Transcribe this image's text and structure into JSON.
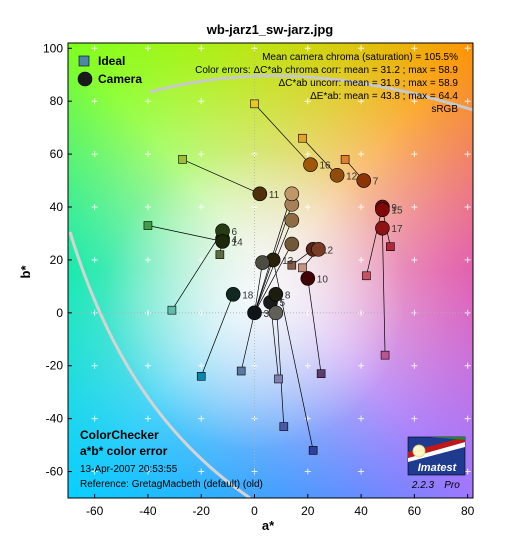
{
  "chart_data": {
    "type": "scatter",
    "title": "wb-jarz1_sw-jarz.jpg",
    "xlabel": "a*",
    "ylabel": "b*",
    "xlim": [
      -70,
      82
    ],
    "ylim": [
      -70,
      102
    ],
    "xticks": [
      -60,
      -40,
      -20,
      0,
      20,
      40,
      60,
      80
    ],
    "yticks": [
      -60,
      -40,
      -20,
      0,
      20,
      40,
      60,
      80,
      100
    ],
    "grid": true,
    "legend": {
      "placement": "top-left",
      "entries": [
        "Ideal",
        "Camera"
      ]
    },
    "stats": [
      "Mean camera chroma (saturation) = 105.5%",
      "Color errors:  ΔC*ab chroma corr:  mean = 31.2 ;  max = 58.9",
      "ΔC*ab uncorr:  mean = 31.9 ;  max = 58.9",
      "ΔE*ab:  mean = 43.8 ;  max = 64.4",
      "sRGB"
    ],
    "info": {
      "chart_name": "ColorChecker",
      "subtitle": "a*b* color error",
      "date": "13-Apr-2007 20:53:55",
      "reference": "Reference: GretagMacbeth (default) (old)"
    },
    "logo": {
      "name": "Imatest",
      "version": "2.2.3",
      "edition": "Pro"
    },
    "patches": [
      {
        "id": 1,
        "label": "1",
        "ideal": [
          14,
          18
        ],
        "camera": [
          22,
          24
        ],
        "ideal_color": "#8a5a48",
        "camera_color": "#5a2616"
      },
      {
        "id": 2,
        "label": "2",
        "ideal": [
          18,
          17
        ],
        "camera": [
          24,
          24
        ],
        "ideal_color": "#c89482",
        "camera_color": "#7a3c24"
      },
      {
        "id": 3,
        "label": "3",
        "ideal": [
          -5,
          -22
        ],
        "camera": [
          0,
          0
        ],
        "ideal_color": "#5a78a0",
        "camera_color": "#101418"
      },
      {
        "id": 4,
        "label": "4",
        "ideal": [
          -13,
          22
        ],
        "camera": [
          -12,
          28
        ],
        "ideal_color": "#5c6c3c",
        "camera_color": "#183008"
      },
      {
        "id": 5,
        "label": "5",
        "ideal": [
          9,
          -25
        ],
        "camera": [
          6,
          4
        ],
        "ideal_color": "#8080b0",
        "camera_color": "#181c1c"
      },
      {
        "id": 6,
        "label": "6",
        "ideal": [
          -31,
          1
        ],
        "camera": [
          -12,
          31
        ],
        "ideal_color": "#60bcaa",
        "camera_color": "#283c14"
      },
      {
        "id": 7,
        "label": "7",
        "ideal": [
          34,
          58
        ],
        "camera": [
          41,
          50
        ],
        "ideal_color": "#e07c2c",
        "camera_color": "#8c3408"
      },
      {
        "id": 8,
        "label": "8",
        "ideal": [
          11,
          -43
        ],
        "camera": [
          8,
          7
        ],
        "ideal_color": "#4a5aa8",
        "camera_color": "#1c1c10"
      },
      {
        "id": 9,
        "label": "9",
        "ideal": [
          42,
          14
        ],
        "camera": [
          48,
          40
        ],
        "ideal_color": "#c45460",
        "camera_color": "#6c0c0c"
      },
      {
        "id": 10,
        "label": "10",
        "ideal": [
          25,
          -23
        ],
        "camera": [
          20,
          13
        ],
        "ideal_color": "#5e3c6c",
        "camera_color": "#400404"
      },
      {
        "id": 11,
        "label": "11",
        "ideal": [
          -27,
          58
        ],
        "camera": [
          2,
          45
        ],
        "ideal_color": "#9cbc3c",
        "camera_color": "#503008"
      },
      {
        "id": 12,
        "label": "12",
        "ideal": [
          18,
          66
        ],
        "camera": [
          31,
          52
        ],
        "ideal_color": "#e4a428",
        "camera_color": "#904c08"
      },
      {
        "id": 13,
        "label": "13",
        "ideal": [
          22,
          -52
        ],
        "camera": [
          7,
          20
        ],
        "ideal_color": "#3040a0",
        "camera_color": "#282008"
      },
      {
        "id": 14,
        "label": "14",
        "ideal": [
          -40,
          33
        ],
        "camera": [
          -12,
          27
        ],
        "ideal_color": "#449c48",
        "camera_color": "#1c2808"
      },
      {
        "id": 15,
        "label": "15",
        "ideal": [
          51,
          25
        ],
        "camera": [
          48,
          39
        ],
        "ideal_color": "#b0283a",
        "camera_color": "#800808"
      },
      {
        "id": 16,
        "label": "16",
        "ideal": [
          0,
          79
        ],
        "camera": [
          21,
          56
        ],
        "ideal_color": "#ecc620",
        "camera_color": "#a05808"
      },
      {
        "id": 17,
        "label": "17",
        "ideal": [
          49,
          -16
        ],
        "camera": [
          48,
          32
        ],
        "ideal_color": "#bc5494",
        "camera_color": "#8c1414"
      },
      {
        "id": 18,
        "label": "18",
        "ideal": [
          -20,
          -24
        ],
        "camera": [
          -8,
          7
        ],
        "ideal_color": "#0888a8",
        "camera_color": "#102820"
      },
      {
        "id": 19,
        "label": "",
        "ideal": [
          0,
          0
        ],
        "camera": [
          8,
          0
        ],
        "ideal_color": "#f4f4f0",
        "camera_color": "#606058"
      },
      {
        "id": 20,
        "label": "",
        "ideal": [
          0,
          0
        ],
        "camera": [
          3,
          19
        ],
        "ideal_color": "#c8c8c8",
        "camera_color": "#4c4c40"
      },
      {
        "id": 21,
        "label": "",
        "ideal": [
          0,
          0
        ],
        "camera": [
          14,
          26
        ],
        "ideal_color": "#a0a0a0",
        "camera_color": "#705838"
      },
      {
        "id": 22,
        "label": "",
        "ideal": [
          0,
          0
        ],
        "camera": [
          14,
          35
        ],
        "ideal_color": "#7a7a78",
        "camera_color": "#906c44"
      },
      {
        "id": 23,
        "label": "",
        "ideal": [
          0,
          0
        ],
        "camera": [
          14,
          41
        ],
        "ideal_color": "#555554",
        "camera_color": "#a88058"
      },
      {
        "id": 24,
        "label": "",
        "ideal": [
          0,
          0
        ],
        "camera": [
          14,
          45
        ],
        "ideal_color": "#343434",
        "camera_color": "#c09868"
      }
    ]
  }
}
